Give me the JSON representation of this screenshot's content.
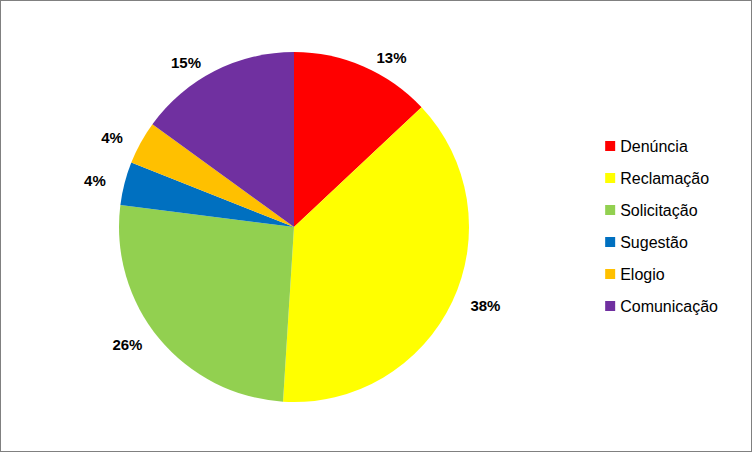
{
  "chart_data": {
    "type": "pie",
    "categories": [
      "Denúncia",
      "Reclamação",
      "Solicitação",
      "Sugestão",
      "Elogio",
      "Comunicação"
    ],
    "values": [
      13,
      38,
      26,
      4,
      4,
      15
    ],
    "value_labels": [
      "13%",
      "38%",
      "26%",
      "4%",
      "4%",
      "15%"
    ],
    "colors": [
      "#ff0000",
      "#ffff00",
      "#92d050",
      "#0070c0",
      "#ffc000",
      "#7030a0"
    ],
    "data_labels": true,
    "legend": "right"
  }
}
